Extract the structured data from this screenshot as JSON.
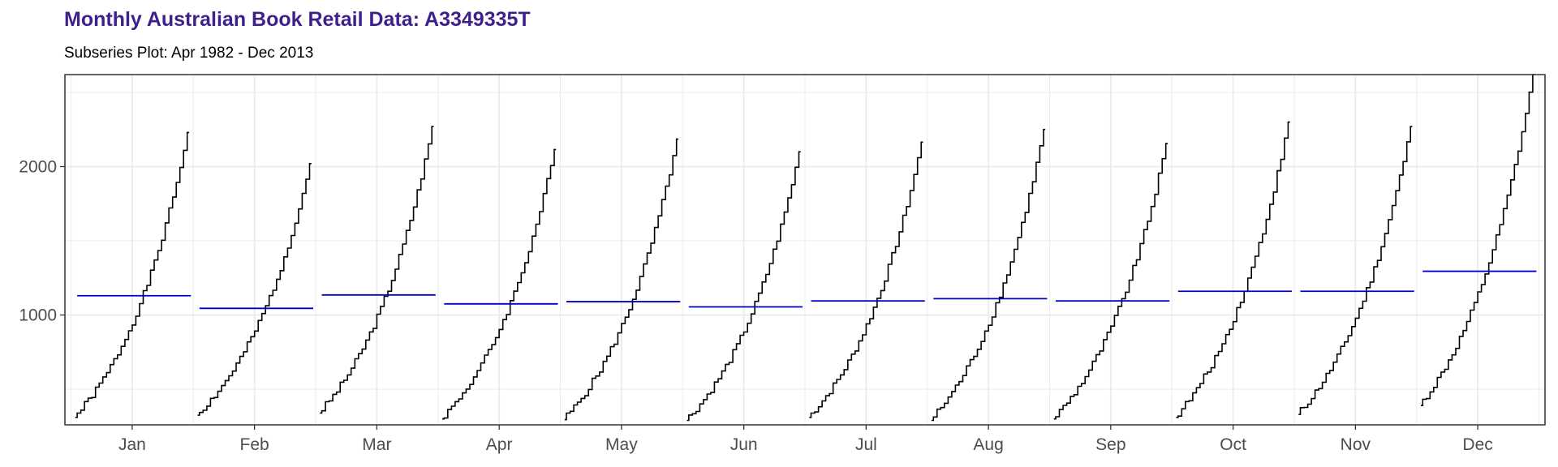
{
  "header": {
    "title": "Monthly Australian Book Retail Data: A3349335T",
    "subtitle": "Subseries Plot: Apr 1982 - Dec 2013"
  },
  "chart_data": {
    "type": "line",
    "title": "Monthly Australian Book Retail Data: A3349335T",
    "subtitle": "Subseries Plot: Apr 1982 - Dec 2013",
    "xlabel": "",
    "ylabel": "",
    "categories": [
      "Jan",
      "Feb",
      "Mar",
      "Apr",
      "May",
      "Jun",
      "Jul",
      "Aug",
      "Sep",
      "Oct",
      "Nov",
      "Dec"
    ],
    "ylim": [
      260,
      2620
    ],
    "yticks": [
      1000,
      2000
    ],
    "grid": true,
    "legend": "none",
    "colors": {
      "series": "#000000",
      "mean": "#0000cd",
      "grid": "#ebebeb",
      "frame": "#333333"
    },
    "series": [
      {
        "category": "Jan",
        "start": 310,
        "end": 2230,
        "mean": 1130
      },
      {
        "category": "Feb",
        "start": 325,
        "end": 2020,
        "mean": 1045
      },
      {
        "category": "Mar",
        "start": 340,
        "end": 2270,
        "mean": 1135
      },
      {
        "category": "Apr",
        "start": 300,
        "end": 2115,
        "mean": 1075
      },
      {
        "category": "May",
        "start": 295,
        "end": 2185,
        "mean": 1090
      },
      {
        "category": "Jun",
        "start": 290,
        "end": 2100,
        "mean": 1055
      },
      {
        "category": "Jul",
        "start": 310,
        "end": 2165,
        "mean": 1095
      },
      {
        "category": "Aug",
        "start": 290,
        "end": 2250,
        "mean": 1110
      },
      {
        "category": "Sep",
        "start": 300,
        "end": 2155,
        "mean": 1095
      },
      {
        "category": "Oct",
        "start": 310,
        "end": 2300,
        "mean": 1160
      },
      {
        "category": "Nov",
        "start": 330,
        "end": 2270,
        "mean": 1160
      },
      {
        "category": "Dec",
        "start": 390,
        "end": 2620,
        "mean": 1295
      }
    ]
  }
}
